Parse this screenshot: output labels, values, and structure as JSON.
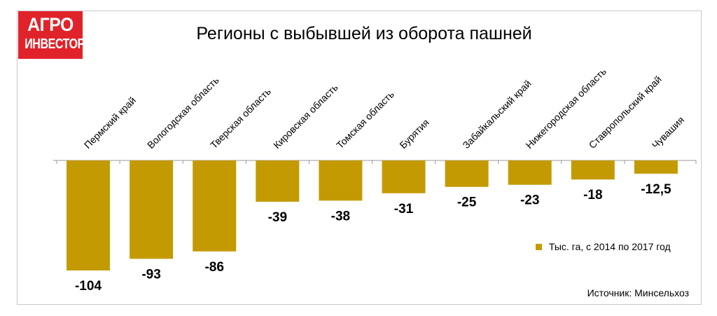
{
  "logo": {
    "line1": "АГРО",
    "line2": "ИНВЕСТОР",
    "color": "#e0232a"
  },
  "title": "Регионы с выбывшей из оборота пашней",
  "legend": {
    "label": "Тыс. га, с 2014 по 2017 год"
  },
  "source": "Источник: Минсельхоз",
  "colors": {
    "bar": "#c49a02",
    "axis": "#9a9a9a",
    "frame": "#c8c8c8"
  },
  "chart_data": {
    "type": "bar",
    "title": "Регионы с выбывшей из оборота пашней",
    "categories": [
      "Пермский край",
      "Вологодская область",
      "Тверская область",
      "Кировская область",
      "Томская область",
      "Бурятия",
      "Забайкальский край",
      "Нижегородская область",
      "Ставропольский край",
      "Чувашия"
    ],
    "series": [
      {
        "name": "Тыс. га, с 2014 по 2017 год",
        "values": [
          -104,
          -93,
          -86,
          -39,
          -38,
          -31,
          -25,
          -23,
          -18,
          -12.5
        ],
        "labels": [
          "-104",
          "-93",
          "-86",
          "-39",
          "-38",
          "-31",
          "-25",
          "-23",
          "-18",
          "-12,5"
        ]
      }
    ],
    "ylim": [
      -104,
      0
    ],
    "grid": false,
    "legend_position": "right"
  }
}
